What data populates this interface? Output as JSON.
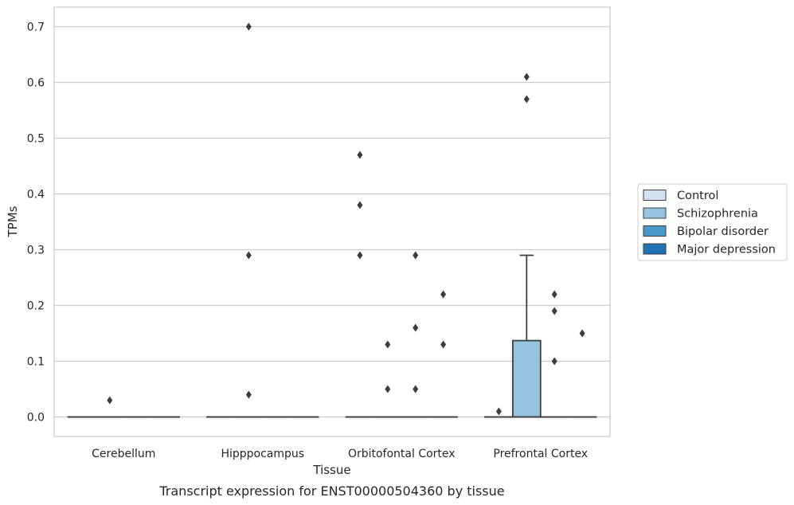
{
  "chart_data": {
    "type": "box",
    "caption": "Transcript expression for ENST00000504360 by tissue",
    "xlabel": "Tissue",
    "ylabel": "TPMs",
    "ylim": [
      -0.035,
      0.735
    ],
    "yticks": [
      0.0,
      0.1,
      0.2,
      0.3,
      0.4,
      0.5,
      0.6,
      0.7
    ],
    "ytick_labels": [
      "0.0",
      "0.1",
      "0.2",
      "0.3",
      "0.4",
      "0.5",
      "0.6",
      "0.7"
    ],
    "categories": [
      "Cerebellum",
      "Hipppocampus",
      "Orbitofontal Cortex",
      "Prefrontal Cortex"
    ],
    "grid": "horizontal",
    "legend_position": "right",
    "series": [
      {
        "name": "Control",
        "color": "#d0e1f2",
        "boxes": [
          {
            "q1": 0,
            "median": 0,
            "q3": 0,
            "whisker_low": 0,
            "whisker_high": 0,
            "outliers": []
          },
          {
            "q1": 0,
            "median": 0,
            "q3": 0,
            "whisker_low": 0,
            "whisker_high": 0,
            "outliers": []
          },
          {
            "q1": 0,
            "median": 0,
            "q3": 0,
            "whisker_low": 0,
            "whisker_high": 0,
            "outliers": [
              0.29,
              0.38,
              0.47
            ]
          },
          {
            "q1": 0,
            "median": 0,
            "q3": 0,
            "whisker_low": 0,
            "whisker_high": 0,
            "outliers": [
              0.01
            ]
          }
        ]
      },
      {
        "name": "Schizophrenia",
        "color": "#94c4df",
        "boxes": [
          {
            "q1": 0,
            "median": 0,
            "q3": 0,
            "whisker_low": 0,
            "whisker_high": 0,
            "outliers": [
              0.03
            ]
          },
          {
            "q1": 0,
            "median": 0,
            "q3": 0,
            "whisker_low": 0,
            "whisker_high": 0,
            "outliers": [
              0.04,
              0.29,
              0.7
            ]
          },
          {
            "q1": 0,
            "median": 0,
            "q3": 0,
            "whisker_low": 0,
            "whisker_high": 0,
            "outliers": [
              0.05,
              0.13
            ]
          },
          {
            "q1": 0,
            "median": 0,
            "q3": 0.137,
            "whisker_low": 0,
            "whisker_high": 0.29,
            "outliers": [
              0.57,
              0.61
            ]
          }
        ]
      },
      {
        "name": "Bipolar disorder",
        "color": "#4a98c9",
        "boxes": [
          {
            "q1": 0,
            "median": 0,
            "q3": 0,
            "whisker_low": 0,
            "whisker_high": 0,
            "outliers": []
          },
          {
            "q1": 0,
            "median": 0,
            "q3": 0,
            "whisker_low": 0,
            "whisker_high": 0,
            "outliers": []
          },
          {
            "q1": 0,
            "median": 0,
            "q3": 0,
            "whisker_low": 0,
            "whisker_high": 0,
            "outliers": [
              0.05,
              0.16,
              0.29
            ]
          },
          {
            "q1": 0,
            "median": 0,
            "q3": 0,
            "whisker_low": 0,
            "whisker_high": 0,
            "outliers": [
              0.1,
              0.19,
              0.22
            ]
          }
        ]
      },
      {
        "name": "Major depression",
        "color": "#2171b5",
        "boxes": [
          {
            "q1": 0,
            "median": 0,
            "q3": 0,
            "whisker_low": 0,
            "whisker_high": 0,
            "outliers": []
          },
          {
            "q1": 0,
            "median": 0,
            "q3": 0,
            "whisker_low": 0,
            "whisker_high": 0,
            "outliers": []
          },
          {
            "q1": 0,
            "median": 0,
            "q3": 0,
            "whisker_low": 0,
            "whisker_high": 0,
            "outliers": [
              0.13,
              0.22
            ]
          },
          {
            "q1": 0,
            "median": 0,
            "q3": 0,
            "whisker_low": 0,
            "whisker_high": 0,
            "outliers": [
              0.15
            ]
          }
        ]
      }
    ],
    "colors": {
      "grid": "#cccccc",
      "frame": "#cccccc",
      "edge": "#3d3d3d",
      "outlier": "#3d3d3d"
    }
  }
}
